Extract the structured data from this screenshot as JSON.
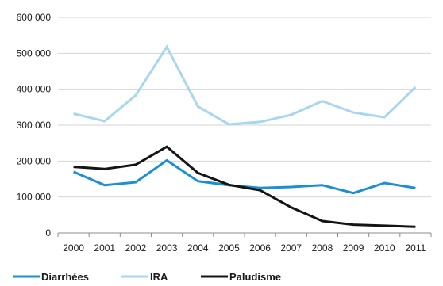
{
  "chart_data": {
    "type": "line",
    "title": "",
    "xlabel": "",
    "ylabel": "",
    "categories": [
      "2000",
      "2001",
      "2002",
      "2003",
      "2004",
      "2005",
      "2006",
      "2007",
      "2008",
      "2009",
      "2010",
      "2011"
    ],
    "y_ticks": [
      "0",
      "100 000",
      "200 000",
      "300 000",
      "400 000",
      "500 000",
      "600 000"
    ],
    "ylim": [
      0,
      600000
    ],
    "grid": "horizontal",
    "legend_position": "bottom",
    "series": [
      {
        "name": "Diarrhées",
        "color": "#1a8fd1",
        "values": [
          170000,
          133000,
          141000,
          202000,
          144000,
          133000,
          125000,
          128000,
          133000,
          111000,
          139000,
          125000
        ]
      },
      {
        "name": "IRA",
        "color": "#a7d7ee",
        "values": [
          332000,
          311000,
          383000,
          518000,
          352000,
          302000,
          309000,
          329000,
          367000,
          335000,
          322000,
          406000
        ]
      },
      {
        "name": "Paludisme",
        "color": "#141414",
        "values": [
          184000,
          178000,
          190000,
          240000,
          167000,
          134000,
          119000,
          71000,
          33000,
          23000,
          20000,
          17000
        ]
      }
    ]
  }
}
